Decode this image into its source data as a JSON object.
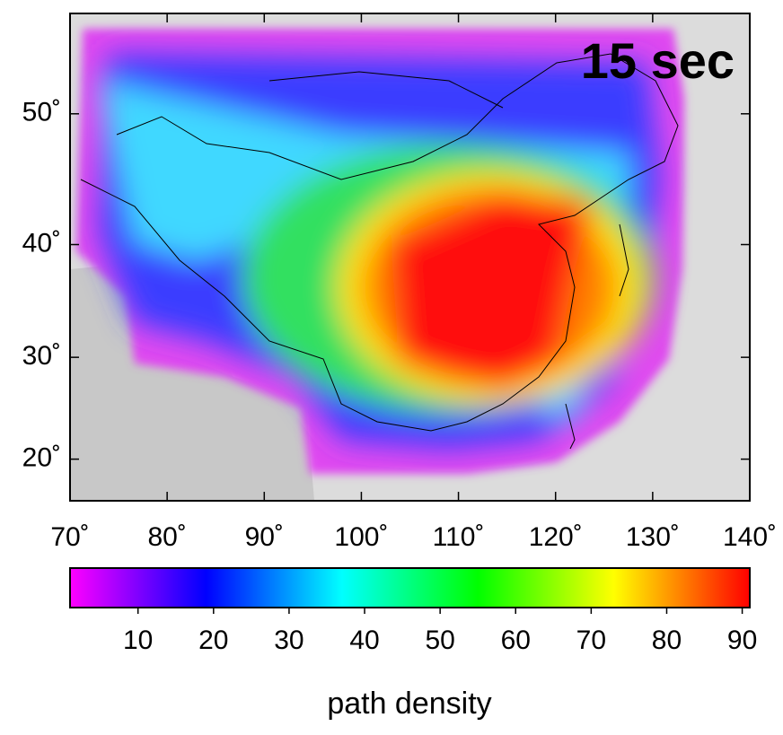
{
  "chart_data": {
    "type": "heatmap",
    "title": "15 sec",
    "projection": "mercator",
    "xlim": [
      70,
      140
    ],
    "ylim": [
      15.7,
      56.5
    ],
    "xticks": [
      {
        "value": 70,
        "label": "70˚"
      },
      {
        "value": 80,
        "label": "80˚"
      },
      {
        "value": 90,
        "label": "90˚"
      },
      {
        "value": 100,
        "label": "100˚"
      },
      {
        "value": 110,
        "label": "110˚"
      },
      {
        "value": 120,
        "label": "120˚"
      },
      {
        "value": 130,
        "label": "130˚"
      },
      {
        "value": 140,
        "label": "140˚"
      }
    ],
    "yticks": [
      {
        "value": 20,
        "label": "20˚"
      },
      {
        "value": 30,
        "label": "30˚"
      },
      {
        "value": 40,
        "label": "40˚"
      },
      {
        "value": 50,
        "label": "50˚"
      }
    ],
    "colorbar": {
      "label": "path density",
      "clim": [
        1,
        91
      ],
      "ticks": [
        10,
        20,
        30,
        40,
        50,
        60,
        70,
        80,
        90
      ],
      "colormap": [
        "#ff00ff",
        "#0000ff",
        "#00ffff",
        "#00ff00",
        "#ffff00",
        "#ff0000"
      ]
    }
  }
}
